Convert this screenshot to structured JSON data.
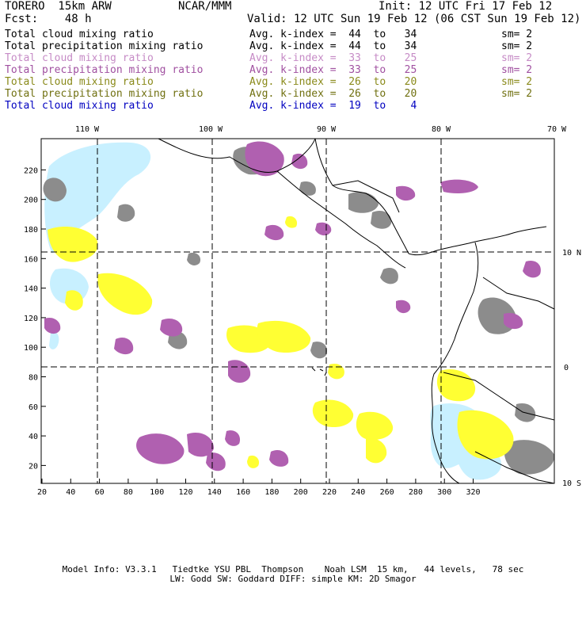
{
  "header": {
    "model": "TORERO  15km ARW",
    "center": "NCAR/MMM",
    "init": "Init: 12 UTC Fri 17 Feb 12",
    "fcst": "Fcst:    48 h",
    "valid": "Valid: 12 UTC Sun 19 Feb 12 (06 CST Sun 19 Feb 12)"
  },
  "legend": [
    {
      "field": "Total cloud mixing ratio",
      "index": "Avg. k-index =  44  to   34",
      "sm": "sm= 2",
      "color": "#000000"
    },
    {
      "field": "Total precipitation mixing ratio",
      "index": "Avg. k-index =  44  to   34",
      "sm": "sm= 2",
      "color": "#000000"
    },
    {
      "field": "Total cloud mixing ratio",
      "index": "Avg. k-index =  33  to   25",
      "sm": "sm= 2",
      "color": "#c68bc6"
    },
    {
      "field": "Total precipitation mixing ratio",
      "index": "Avg. k-index =  33  to   25",
      "sm": "sm= 2",
      "color": "#a050a0"
    },
    {
      "field": "Total cloud mixing ratio",
      "index": "Avg. k-index =  26  to   20",
      "sm": "sm= 2",
      "color": "#8a8a1a"
    },
    {
      "field": "Total precipitation mixing ratio",
      "index": "Avg. k-index =  26  to   20",
      "sm": "sm= 2",
      "color": "#707010"
    },
    {
      "field": "Total cloud mixing ratio",
      "index": "Avg. k-index =  19  to    4",
      "sm": "",
      "color": "#0000c0"
    }
  ],
  "map": {
    "top_lon_labels": [
      "110 W",
      "100 W",
      "90 W",
      "80 W",
      "70 W"
    ],
    "right_lat_labels": [
      "10 N",
      "0",
      "10 S"
    ],
    "x_ticks": [
      "20",
      "40",
      "60",
      "80",
      "100",
      "120",
      "140",
      "160",
      "180",
      "200",
      "220",
      "240",
      "260",
      "280",
      "300",
      "320"
    ],
    "y_ticks": [
      "20",
      "40",
      "60",
      "80",
      "100",
      "120",
      "140",
      "160",
      "180",
      "200",
      "220"
    ],
    "colors": {
      "dark": "#888888",
      "purple": "#b060b0",
      "yellow": "#ffff33",
      "lightblue": "#c8f0ff",
      "coast": "#000000"
    }
  },
  "footer": {
    "line1": "Model Info: V3.3.1   Tiedtke YSU PBL  Thompson    Noah LSM  15 km,   44 levels,   78 sec",
    "line2": "LW: Godd SW: Goddard DIFF: simple KM: 2D Smagor"
  }
}
